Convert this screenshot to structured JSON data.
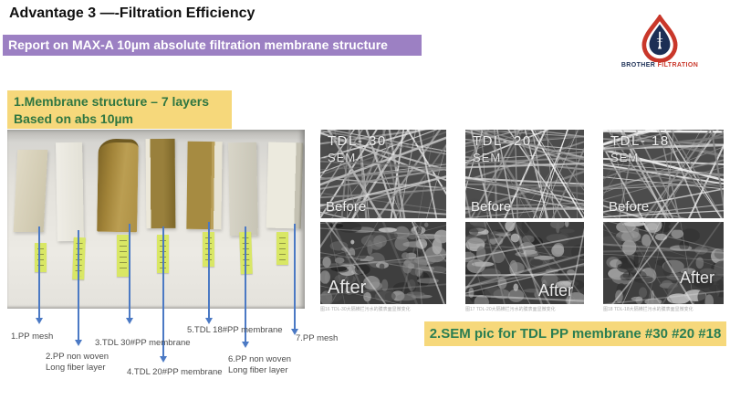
{
  "header": {
    "title": "Advantage 3 —-Filtration Efficiency",
    "banner": "Report on MAX-A 10µm absolute filtration membrane structure"
  },
  "logo": {
    "name_primary": "BROTHER",
    "name_secondary": "FILTRATION"
  },
  "membrane_section": {
    "title_line1": "1.Membrane structure – 7 layers",
    "title_line2": "Based on abs 10µm",
    "labels": [
      {
        "text": "1.PP mesh",
        "text2": ""
      },
      {
        "text": "2.PP non woven",
        "text2": "Long fiber layer"
      },
      {
        "text": "3.TDL 30#PP membrane",
        "text2": ""
      },
      {
        "text": "4.TDL 20#PP membrane",
        "text2": ""
      },
      {
        "text": "5.TDL 18#PP membrane",
        "text2": ""
      },
      {
        "text": "6.PP non woven",
        "text2": "Long fiber layer"
      },
      {
        "text": "7.PP mesh",
        "text2": ""
      }
    ]
  },
  "sem_section": {
    "title": "2.SEM pic for TDL PP membrane #30 #20 #18",
    "columns": [
      {
        "model": "TDL- 30",
        "technique": "SEM",
        "before_label": "Before",
        "after_label": "After",
        "caption": "图16 TDL-30大隔横拦污水的膜表面显微变化"
      },
      {
        "model": "TDL- 20",
        "technique": "SEM",
        "before_label": "Before",
        "after_label": "After",
        "caption": "图17 TDL-20大隔横拦污水的膜表面显微变化"
      },
      {
        "model": "TDL- 18",
        "technique": "SEM",
        "before_label": "Before",
        "after_label": "After",
        "caption": "图18 TDL-18大隔横拦污水的膜表面显微变化"
      }
    ]
  },
  "palette": {
    "banner_purple": "#9c80c3",
    "highlight_yellow": "#f6d87b",
    "heading_green": "#2f7641",
    "arrow_blue": "#4b79c4",
    "brand_navy": "#1c2f55",
    "brand_red": "#c9372a"
  }
}
